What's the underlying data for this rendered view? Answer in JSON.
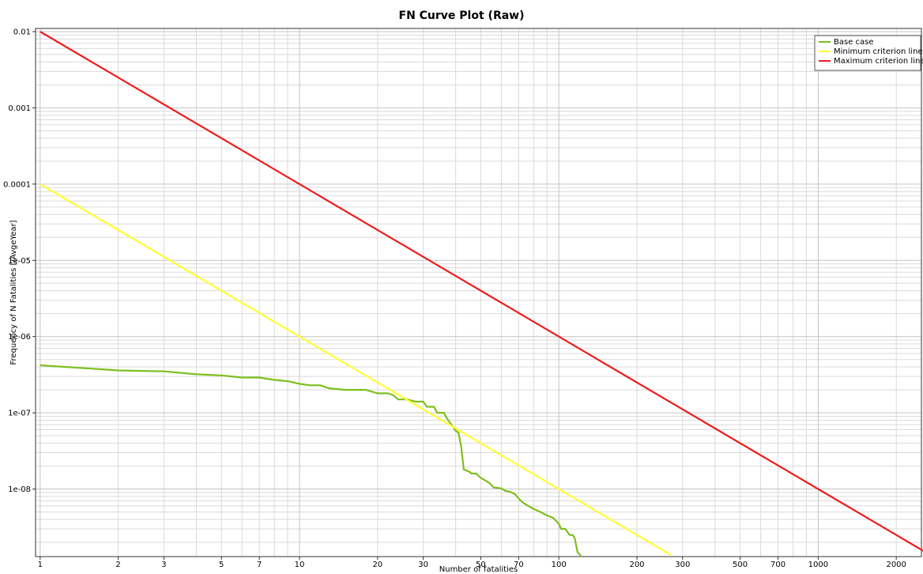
{
  "chart_data": {
    "type": "line",
    "title": "FN Curve Plot (Raw)",
    "xlabel": "Number of fatalities",
    "ylabel": "Frequency of N Fatalities [/AvgeYear]",
    "xscale": "log",
    "yscale": "log",
    "xlim": [
      0.96,
      2500
    ],
    "ylim": [
      1.3e-09,
      0.011
    ],
    "grid": true,
    "legend_position": "top-right",
    "x_tick_labels": [
      "1",
      "2",
      "3",
      "5",
      "7",
      "10",
      "20",
      "30",
      "50",
      "70",
      "100",
      "200",
      "300",
      "500",
      "700",
      "1000",
      "2000"
    ],
    "y_tick_labels": [
      "0.01",
      "0.001",
      "0.0001",
      "1e-05",
      "1e-06",
      "1e-07",
      "1e-08"
    ],
    "series": [
      {
        "name": "Base case",
        "color": "#7dbf1e",
        "x": [
          1,
          2,
          3,
          4,
          5,
          6,
          7,
          8,
          9,
          10,
          11,
          12,
          13,
          15,
          18,
          19,
          20,
          22,
          23,
          24,
          26,
          28,
          30,
          31,
          33,
          34,
          36,
          37,
          40,
          41,
          42,
          43,
          45,
          46,
          48,
          50,
          52,
          54,
          56,
          60,
          62,
          65,
          68,
          70,
          72,
          75,
          80,
          85,
          90,
          95,
          100,
          102,
          106,
          110,
          113,
          115,
          118,
          122
        ],
        "y": [
          4.2e-07,
          3.6e-07,
          3.5e-07,
          3.2e-07,
          3.1e-07,
          2.9e-07,
          2.9e-07,
          2.7e-07,
          2.6e-07,
          2.4e-07,
          2.3e-07,
          2.3e-07,
          2.1e-07,
          2e-07,
          2e-07,
          1.9e-07,
          1.8e-07,
          1.8e-07,
          1.7e-07,
          1.5e-07,
          1.5e-07,
          1.4e-07,
          1.4e-07,
          1.2e-07,
          1.2e-07,
          1e-07,
          1e-07,
          8.5e-08,
          5.8e-08,
          5.5e-08,
          3.6e-08,
          1.8e-08,
          1.7e-08,
          1.6e-08,
          1.6e-08,
          1.4e-08,
          1.3e-08,
          1.2e-08,
          1.05e-08,
          1.02e-08,
          9.5e-09,
          9.2e-09,
          8.5e-09,
          7.5e-09,
          6.8e-09,
          6.2e-09,
          5.5e-09,
          5e-09,
          4.5e-09,
          4.2e-09,
          3.5e-09,
          3e-09,
          3e-09,
          2.5e-09,
          2.5e-09,
          2.3e-09,
          1.5e-09,
          1.3e-09
        ]
      },
      {
        "name": "Minimum criterion line",
        "color": "#ffff33",
        "x": [
          1,
          270
        ],
        "y": [
          0.0001,
          1.3717e-09
        ]
      },
      {
        "name": "Maximum criterion line",
        "color": "#f01a1a",
        "x": [
          1,
          2600
        ],
        "y": [
          0.01,
          1.4793e-09
        ]
      }
    ]
  }
}
